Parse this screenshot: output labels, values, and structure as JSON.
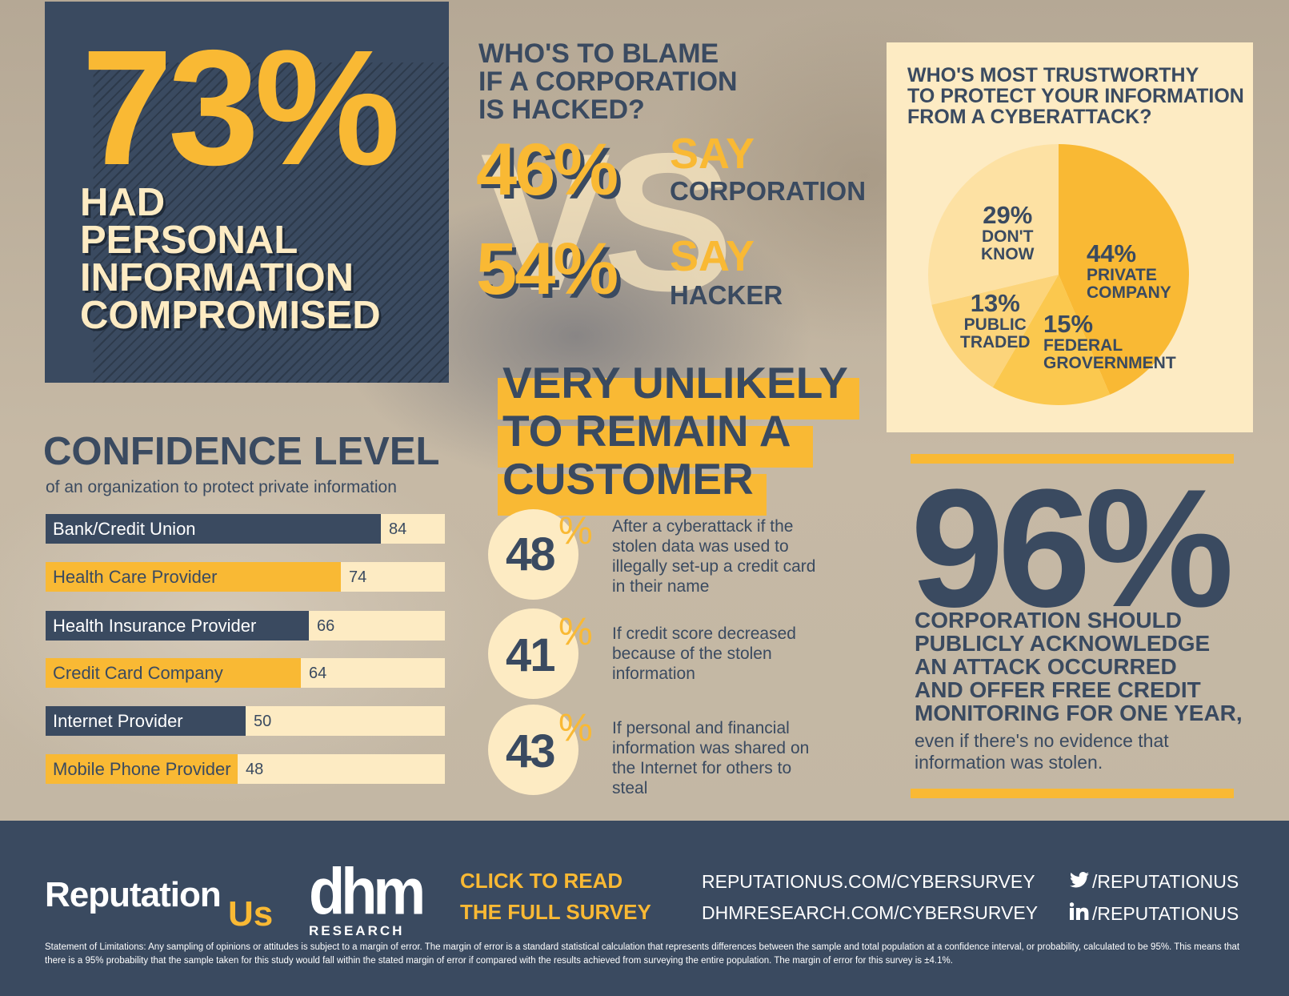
{
  "headline": {
    "percent": "73%",
    "lines": [
      "HAD",
      "PERSONAL",
      "INFORMATION",
      "COMPROMISED"
    ]
  },
  "blame": {
    "title_lines": [
      "WHO'S TO BLAME",
      "IF A CORPORATION",
      "IS HACKED?"
    ],
    "vs": "VS",
    "corporation": {
      "percent": "46%",
      "say": "SAY",
      "who": "CORPORATION"
    },
    "hacker": {
      "percent": "54%",
      "say": "SAY",
      "who": "HACKER"
    }
  },
  "trust": {
    "title_lines": [
      "WHO'S MOST TRUSTWORTHY",
      "TO PROTECT YOUR INFORMATION",
      "FROM A CYBERATTACK?"
    ],
    "slices": [
      {
        "percent": "44%",
        "lines": [
          "PRIVATE",
          "COMPANY"
        ]
      },
      {
        "percent": "15%",
        "lines": [
          "FEDERAL",
          "GROVERNMENT"
        ]
      },
      {
        "percent": "13%",
        "lines": [
          "PUBLIC",
          "TRADED"
        ]
      },
      {
        "percent": "29%",
        "lines": [
          "DON'T",
          "KNOW"
        ]
      }
    ]
  },
  "unlikely": {
    "title_lines": [
      "VERY UNLIKELY",
      "TO REMAIN A",
      "CUSTOMER"
    ],
    "pct_symbol": "%",
    "items": [
      {
        "value": "48",
        "text": "After a cyberattack if the stolen data was used to illegally set-up a credit card in their name"
      },
      {
        "value": "41",
        "text": "If credit score decreased because of the stolen information"
      },
      {
        "value": "43",
        "text": "If personal and financial information was shared on the Internet for others to steal"
      }
    ]
  },
  "confidence": {
    "title": "CONFIDENCE LEVEL",
    "subtitle": "of an organization to protect private information"
  },
  "ninety_six": {
    "percent": "96%",
    "lines": [
      "CORPORATION SHOULD",
      "PUBLICLY ACKNOWLEDGE",
      "AN ATTACK OCCURRED",
      "AND OFFER FREE CREDIT",
      "MONITORING FOR ONE YEAR,"
    ],
    "note": "even if there's no evidence that information was stolen."
  },
  "footer": {
    "reputation": "Reputation",
    "us": "Us",
    "dhm": "dhm",
    "dhm_sub": "RESEARCH",
    "cta_lines": [
      "CLICK TO READ",
      "THE FULL SURVEY"
    ],
    "urls": [
      "REPUTATIONUS.COM/CYBERSURVEY",
      "DHMRESEARCH.COM/CYBERSURVEY"
    ],
    "twitter": "/REPUTATIONUS",
    "linkedin": "/REPUTATIONUS",
    "disclaimer": "Statement of Limitations: Any sampling of opinions or attitudes is subject to a margin of error. The margin of error is a standard statistical calculation that represents differences between the sample and total population at a confidence interval, or probability, calculated to be 95%. This means that there is a 95% probability that the sample taken for this study would fall within the stated margin of error if compared with the results achieved from surveying the entire population. The margin of error for this survey is ±4.1%."
  },
  "colors": {
    "navy": "#3a4a60",
    "gold": "#f9b934",
    "cream": "#fdebc3"
  },
  "chart_data": [
    {
      "type": "bar",
      "title": "CONFIDENCE LEVEL",
      "subtitle": "of an organization to protect private information",
      "categories": [
        "Bank/Credit Union",
        "Health Care Provider",
        "Health Insurance Provider",
        "Credit Card Company",
        "Internet Provider",
        "Mobile Phone Provider"
      ],
      "values": [
        84,
        74,
        66,
        64,
        50,
        48
      ],
      "xlim": [
        0,
        100
      ],
      "orientation": "horizontal"
    },
    {
      "type": "pie",
      "title": "WHO'S MOST TRUSTWORTHY TO PROTECT YOUR INFORMATION FROM A CYBERATTACK?",
      "labels": [
        "PRIVATE COMPANY",
        "FEDERAL GROVERNMENT",
        "PUBLIC TRADED",
        "DON'T KNOW"
      ],
      "values": [
        44,
        15,
        13,
        29
      ]
    }
  ]
}
